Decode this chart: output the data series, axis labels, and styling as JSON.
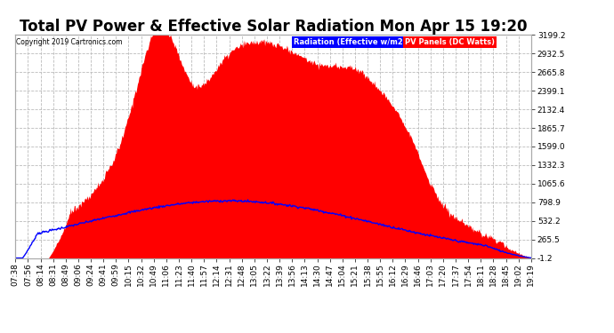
{
  "title": "Total PV Power & Effective Solar Radiation Mon Apr 15 19:20",
  "copyright": "Copyright 2019 Cartronics.com",
  "legend_blue": "Radiation (Effective w/m2)",
  "legend_red": "PV Panels (DC Watts)",
  "ymin": -1.2,
  "ymax": 3199.2,
  "yticks": [
    -1.2,
    265.5,
    532.2,
    798.9,
    1065.6,
    1332.3,
    1599.0,
    1865.7,
    2132.4,
    2399.1,
    2665.8,
    2932.5,
    3199.2
  ],
  "background_color": "#ffffff",
  "plot_bg_color": "#ffffff",
  "grid_color": "#bbbbbb",
  "fill_color": "#ff0000",
  "line_color": "#0000ff",
  "title_fontsize": 12,
  "tick_fontsize": 6.5,
  "xtick_labels": [
    "07:38",
    "07:56",
    "08:14",
    "08:31",
    "08:49",
    "09:06",
    "09:24",
    "09:41",
    "09:59",
    "10:15",
    "10:32",
    "10:49",
    "11:06",
    "11:23",
    "11:40",
    "11:57",
    "12:14",
    "12:31",
    "12:48",
    "13:05",
    "13:22",
    "13:39",
    "13:56",
    "14:13",
    "14:30",
    "14:47",
    "15:04",
    "15:21",
    "15:38",
    "15:55",
    "16:12",
    "16:29",
    "16:46",
    "17:03",
    "17:20",
    "17:37",
    "17:54",
    "18:11",
    "18:28",
    "18:45",
    "19:02",
    "19:19"
  ]
}
